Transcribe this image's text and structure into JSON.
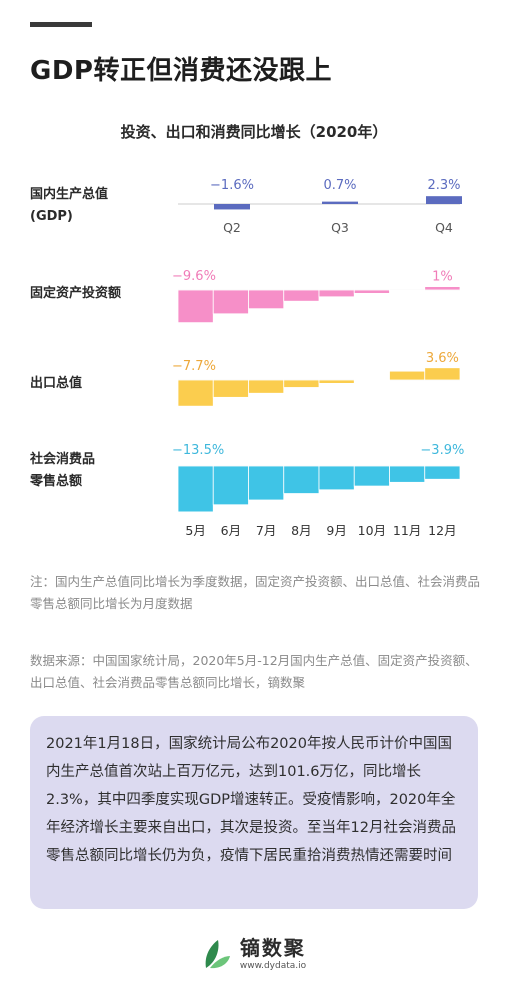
{
  "header": {
    "title": "GDP转正但消费还没跟上"
  },
  "chart_data": {
    "type": "bar",
    "title": "投资、出口和消费同比增长（2020年）",
    "panels": [
      {
        "name": "国内生产总值\n(GDP)",
        "color": "#5b6bbf",
        "categories": [
          "Q2",
          "Q3",
          "Q4"
        ],
        "values": [
          -1.6,
          0.7,
          2.3
        ],
        "value_labels": [
          "−1.6%",
          "0.7%",
          "2.3%"
        ],
        "label_color": "#5b6bbf"
      },
      {
        "name": "固定资产投资额",
        "color": "#f68fc8",
        "categories": [
          "5月",
          "6月",
          "7月",
          "8月",
          "9月",
          "10月",
          "11月",
          "12月"
        ],
        "values": [
          -9.6,
          -7.0,
          -5.5,
          -3.3,
          -2.0,
          -1.0,
          0,
          1.0
        ],
        "value_labels": [
          "−9.6%",
          "",
          "",
          "",
          "",
          "",
          "",
          "1%"
        ],
        "label_color": "#f07cb8"
      },
      {
        "name": "出口总值",
        "color": "#fbcd4e",
        "categories": [
          "5月",
          "6月",
          "7月",
          "8月",
          "9月",
          "10月",
          "11月",
          "12月"
        ],
        "values": [
          -7.7,
          -5.1,
          -3.9,
          -2.2,
          -1.0,
          0.2,
          2.6,
          3.6
        ],
        "value_labels": [
          "−7.7%",
          "",
          "",
          "",
          "",
          "",
          "",
          "3.6%"
        ],
        "label_color": "#eda83a"
      },
      {
        "name": "社会消费品\n零售总额",
        "color": "#3fc4e6",
        "categories": [
          "5月",
          "6月",
          "7月",
          "8月",
          "9月",
          "10月",
          "11月",
          "12月"
        ],
        "values": [
          -13.5,
          -11.4,
          -10.0,
          -8.1,
          -7.0,
          -5.9,
          -4.8,
          -3.9
        ],
        "value_labels": [
          "−13.5%",
          "",
          "",
          "",
          "",
          "",
          "",
          "−3.9%"
        ],
        "label_color": "#3fb8dc"
      }
    ],
    "x_tick_labels": [
      "5月",
      "6月",
      "7月",
      "8月",
      "9月",
      "10月",
      "11月",
      "12月"
    ]
  },
  "notes": {
    "note": "注：国内生产总值同比增长为季度数据，固定资产投资额、出口总值、社会消费品零售总额同比增长为月度数据",
    "source": "数据来源：中国国家统计局，2020年5月-12月国内生产总值、固定资产投资额、出口总值、社会消费品零售总额同比增长，镝数聚"
  },
  "summary": "2021年1月18日，国家统计局公布2020年按人民币计价中国国内生产总值首次站上百万亿元，达到101.6万亿，同比增长2.3%，其中四季度实现GDP增速转正。受疫情影响，2020年全年经济增长主要来自出口，其次是投资。至当年12月社会消费品零售总额同比增长仍为负，疫情下居民重拾消费热情还需要时间",
  "logo": {
    "name": "镝数聚",
    "url": "www.dydata.io"
  },
  "colors": {
    "logo_leaf_dark": "#2f8a4d",
    "logo_leaf_light": "#6cc57a"
  }
}
